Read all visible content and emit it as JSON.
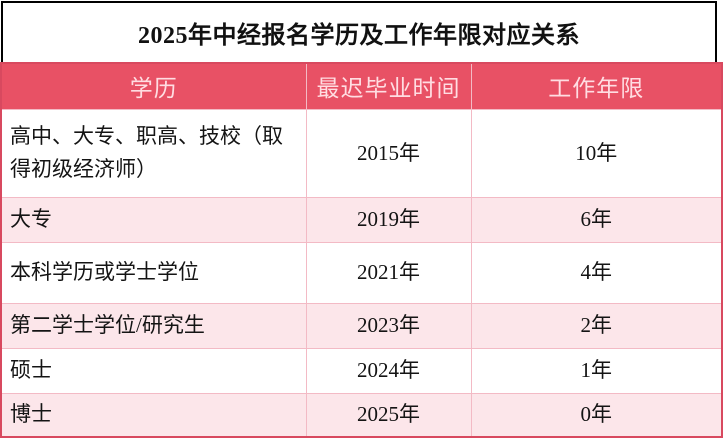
{
  "title": "2025年中经报名学历及工作年限对应关系",
  "colors": {
    "header_bg": "#e85165",
    "header_text": "#ffdde2",
    "row_alt_bg": "#fce6ea",
    "grid_line": "#f3bac5",
    "outer_border": "#d8495f",
    "title_border": "#000000",
    "body_text": "#141414"
  },
  "chart_data": {
    "type": "table",
    "title": "2025年中经报名学历及工作年限对应关系",
    "columns": [
      "学历",
      "最迟毕业时间",
      "工作年限"
    ],
    "rows": [
      [
        "高中、大专、职高、技校（取得初级经济师）",
        "2015年",
        "10年"
      ],
      [
        "大专",
        "2019年",
        "6年"
      ],
      [
        "本科学历或学士学位",
        "2021年",
        "4年"
      ],
      [
        "第二学士学位/研究生",
        "2023年",
        "2年"
      ],
      [
        "硕士",
        "2024年",
        "1年"
      ],
      [
        "博士",
        "2025年",
        "0年"
      ]
    ]
  }
}
